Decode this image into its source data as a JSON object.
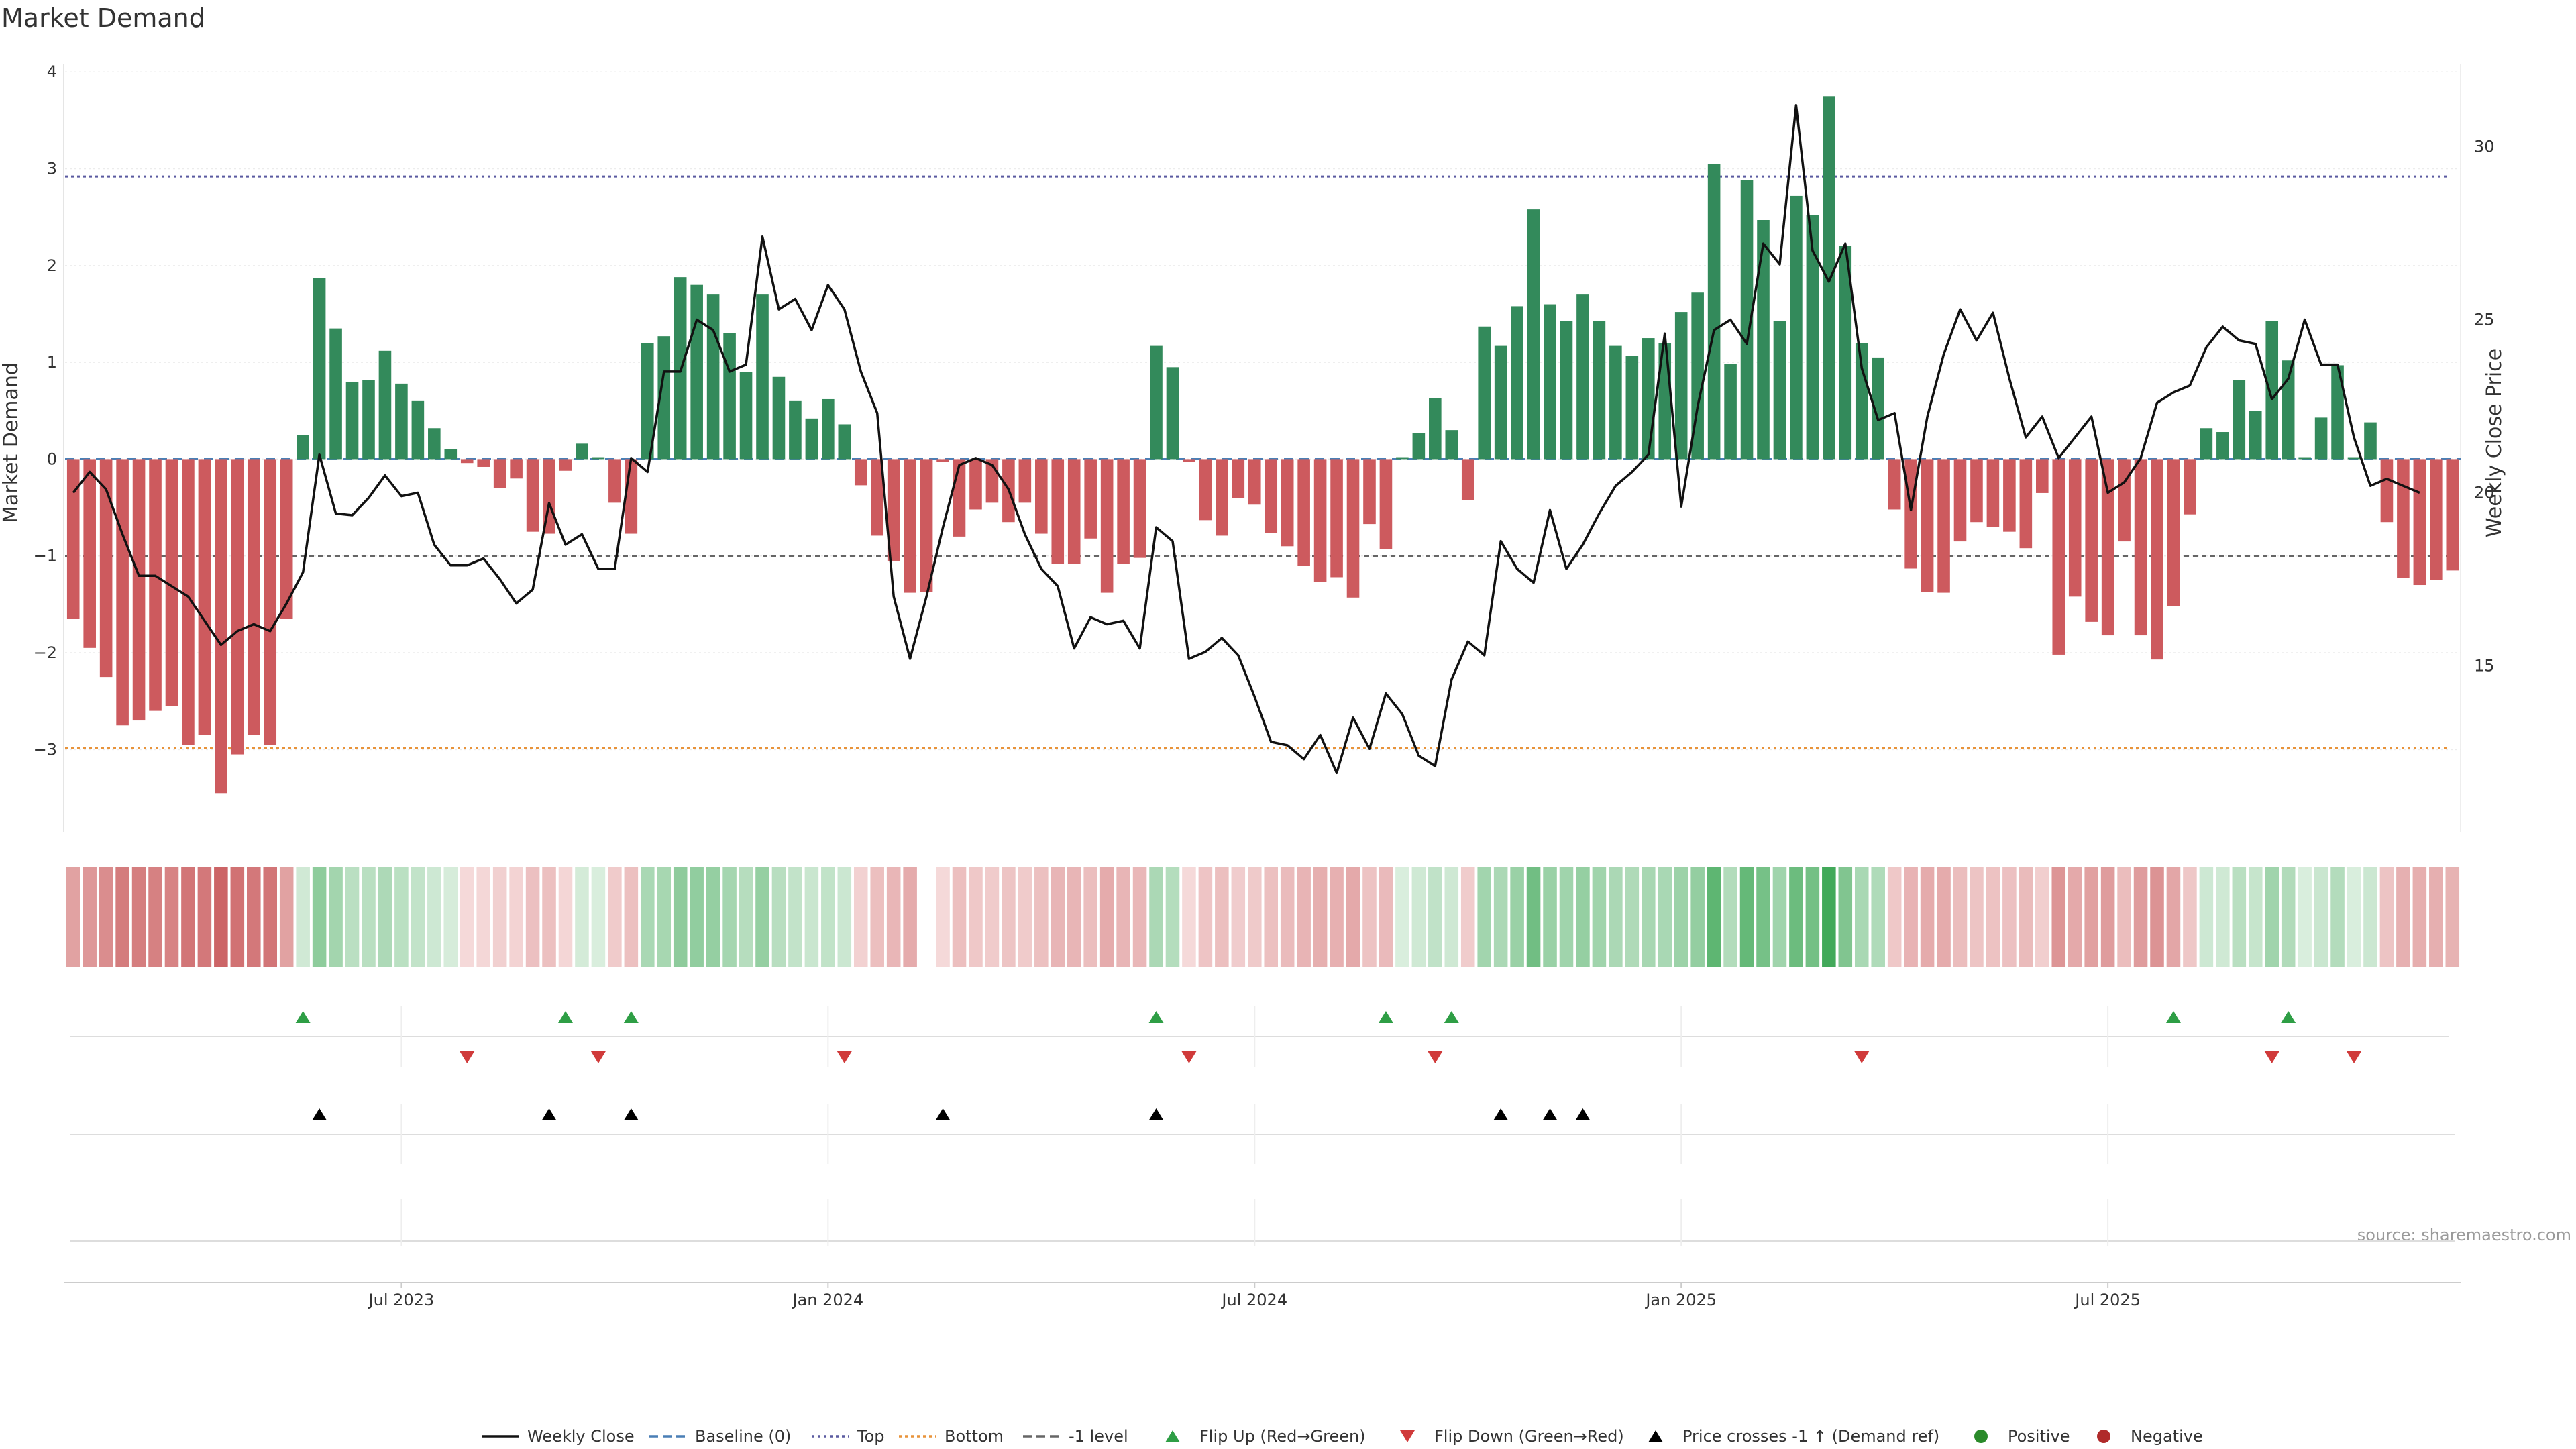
{
  "chart_data": {
    "type": "bar",
    "title": "Market Demand",
    "ylabel": "Market Demand",
    "y2label": "Weekly Close Price",
    "ylim": [
      -3.85,
      4.05
    ],
    "y2lim": [
      10.2,
      32.3
    ],
    "yticks": [
      4,
      3,
      2,
      1,
      0,
      -1,
      -2,
      -3
    ],
    "ytick_labels": [
      "4",
      "3",
      "2",
      "1",
      "0",
      "−1",
      "−2",
      "−3"
    ],
    "y2ticks": [
      30,
      25,
      20,
      15
    ],
    "y2tick_labels": [
      "30",
      "25",
      "20",
      "15"
    ],
    "xticks": [
      {
        "label": "Jul 2023",
        "week": 20
      },
      {
        "label": "Jan 2024",
        "week": 46
      },
      {
        "label": "Jul 2024",
        "week": 72
      },
      {
        "label": "Jan 2025",
        "week": 98
      },
      {
        "label": "Jul 2025",
        "week": 124
      }
    ],
    "reference_lines": {
      "top": 2.92,
      "bottom": -2.98,
      "minus_one": -1.0,
      "baseline": 0
    },
    "series": [
      {
        "name": "Market Demand",
        "values": [
          -1.65,
          -1.95,
          -2.25,
          -2.75,
          -2.7,
          -2.6,
          -2.55,
          -2.95,
          -2.85,
          -3.45,
          -3.05,
          -2.85,
          -2.95,
          -1.65,
          0.25,
          1.87,
          1.35,
          0.8,
          0.82,
          1.12,
          0.78,
          0.6,
          0.32,
          0.1,
          -0.04,
          -0.08,
          -0.3,
          -0.2,
          -0.75,
          -0.77,
          -0.12,
          0.16,
          0.02,
          -0.45,
          -0.77,
          1.2,
          1.27,
          1.88,
          1.8,
          1.7,
          1.3,
          0.9,
          1.7,
          0.85,
          0.6,
          0.42,
          0.62,
          0.36,
          -0.27,
          -0.79,
          -1.05,
          -1.38,
          -1.37,
          -0.03,
          -0.8,
          -0.52,
          -0.45,
          -0.65,
          -0.45,
          -0.77,
          -1.08,
          -1.08,
          -0.82,
          -1.38,
          -1.08,
          -1.02,
          1.17,
          0.95,
          -0.03,
          -0.63,
          -0.79,
          -0.4,
          -0.47,
          -0.76,
          -0.9,
          -1.1,
          -1.27,
          -1.22,
          -1.43,
          -0.67,
          -0.93,
          0.02,
          0.27,
          0.63,
          0.3,
          -0.42,
          1.37,
          1.17,
          1.58,
          2.58,
          1.6,
          1.43,
          1.7,
          1.43,
          1.17,
          1.07,
          1.25,
          1.2,
          1.52,
          1.72,
          3.05,
          0.98,
          2.88,
          2.47,
          1.43,
          2.72,
          2.52,
          3.75,
          2.2,
          1.2,
          1.05,
          -0.52,
          -1.13,
          -1.37,
          -1.38,
          -0.85,
          -0.65,
          -0.7,
          -0.75,
          -0.92,
          -0.35,
          -2.02,
          -1.42,
          -1.68,
          -1.82,
          -0.85,
          -1.82,
          -2.07,
          -1.52,
          -0.57,
          0.32,
          0.28,
          0.82,
          0.5,
          1.43,
          1.02,
          0.02,
          0.43,
          0.97,
          0.02,
          0.38,
          -0.65,
          -1.23,
          -1.3,
          -1.25,
          -1.15
        ]
      },
      {
        "name": "Weekly Close",
        "axis": "y2",
        "values": [
          20.0,
          20.6,
          20.1,
          18.8,
          17.6,
          17.6,
          17.3,
          17.0,
          16.3,
          15.6,
          16.0,
          16.2,
          16.0,
          16.8,
          17.7,
          21.1,
          19.4,
          19.35,
          19.85,
          20.5,
          19.9,
          20.0,
          18.5,
          17.9,
          17.9,
          18.1,
          17.5,
          16.8,
          17.2,
          19.7,
          18.5,
          18.8,
          17.8,
          17.8,
          21.0,
          20.6,
          23.5,
          23.5,
          25.0,
          24.7,
          23.5,
          23.7,
          27.4,
          25.3,
          25.6,
          24.7,
          26.0,
          25.3,
          23.5,
          22.3,
          17.0,
          15.2,
          17.0,
          19.0,
          20.8,
          21.0,
          20.8,
          20.1,
          18.8,
          17.8,
          17.3,
          15.5,
          16.4,
          16.2,
          16.3,
          15.5,
          19.0,
          18.6,
          15.2,
          15.4,
          15.8,
          15.3,
          14.1,
          12.8,
          12.7,
          12.3,
          13.0,
          11.9,
          13.5,
          12.6,
          14.2,
          13.6,
          12.4,
          12.1,
          14.6,
          15.7,
          15.3,
          18.6,
          17.8,
          17.4,
          19.5,
          17.8,
          18.5,
          19.4,
          20.2,
          20.6,
          21.1,
          24.6,
          19.6,
          22.5,
          24.7,
          25.0,
          24.3,
          27.2,
          26.6,
          31.2,
          27.0,
          26.1,
          27.2,
          23.6,
          22.1,
          22.3,
          19.5,
          22.2,
          24.0,
          25.3,
          24.4,
          25.2,
          23.3,
          21.6,
          22.2,
          21.0,
          21.6,
          22.2,
          20.0,
          20.3,
          21.0,
          22.6,
          22.9,
          23.1,
          24.2,
          24.8,
          24.4,
          24.3,
          22.7,
          23.3,
          25.0,
          23.7,
          23.7,
          21.6,
          20.2,
          20.4,
          20.2,
          20.0
        ]
      }
    ],
    "demand_strip": "heatmap strip of Market Demand by week",
    "flip_up_weeks": [
      14,
      30,
      34,
      66,
      80,
      84,
      128,
      135
    ],
    "flip_down_weeks": [
      24,
      32,
      47,
      68,
      83,
      109,
      134,
      139
    ],
    "price_cross_weeks": [
      15,
      29,
      34,
      53,
      66,
      87,
      90,
      92
    ],
    "source": "source: sharemaestro.com",
    "legend": [
      {
        "label": "Weekly Close",
        "style": "line",
        "color": "#111111"
      },
      {
        "label": "Baseline (0)",
        "style": "dashed",
        "color": "#4a7fb5"
      },
      {
        "label": "Top",
        "style": "dotted",
        "color": "#5a5aa0"
      },
      {
        "label": "Bottom",
        "style": "dotted",
        "color": "#e8933a"
      },
      {
        "label": "-1 level",
        "style": "dashed",
        "color": "#666666"
      },
      {
        "label": "Flip Up (Red→Green)",
        "style": "triangle-up",
        "color": "#2e9e45"
      },
      {
        "label": "Flip Down (Green→Red)",
        "style": "triangle-down",
        "color": "#d03a3a"
      },
      {
        "label": "Price crosses -1 ↑ (Demand ref)",
        "style": "triangle-up",
        "color": "#000000"
      },
      {
        "label": "Positive",
        "style": "dot",
        "color": "#2a8a2a"
      },
      {
        "label": "Negative",
        "style": "dot",
        "color": "#b02a2a"
      }
    ],
    "colors": {
      "positive": "#338a5b",
      "negative": "#cd5a5e",
      "price": "#111111"
    }
  }
}
